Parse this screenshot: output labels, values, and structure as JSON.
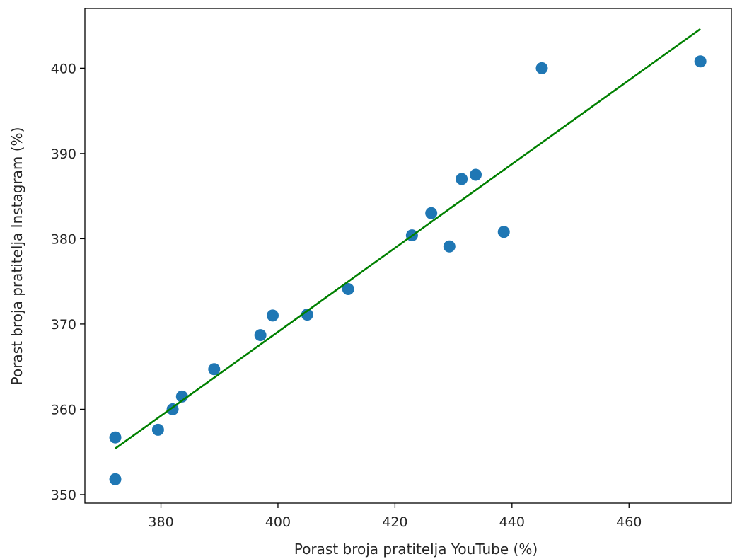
{
  "chart_data": {
    "type": "scatter",
    "title": "",
    "xlabel": "Porast broja pratitelja YouTube (%)",
    "ylabel": "Porast broja pratitelja Instagram (%)",
    "xlim": [
      367.0,
      477.5
    ],
    "ylim": [
      349.0,
      407.0
    ],
    "xticks": [
      380,
      400,
      420,
      440,
      460
    ],
    "yticks": [
      350,
      360,
      370,
      380,
      390,
      400
    ],
    "grid": false,
    "legend": "none",
    "point_color": "#1f77b4",
    "line_color": "#008000",
    "series": [
      {
        "type": "scatter",
        "x": [
          372.2,
          372.2,
          379.5,
          382.0,
          383.6,
          389.1,
          397.0,
          399.1,
          405.0,
          412.0,
          422.9,
          426.2,
          429.3,
          431.4,
          433.8,
          438.6,
          445.1,
          472.2
        ],
        "y": [
          351.8,
          356.7,
          357.6,
          360.0,
          361.5,
          364.7,
          368.7,
          371.0,
          371.1,
          374.1,
          380.4,
          383.0,
          379.1,
          387.0,
          387.5,
          380.8,
          400.0,
          400.8
        ]
      },
      {
        "type": "line",
        "x": [
          372.2,
          472.2
        ],
        "y": [
          355.4,
          404.6
        ]
      }
    ]
  }
}
